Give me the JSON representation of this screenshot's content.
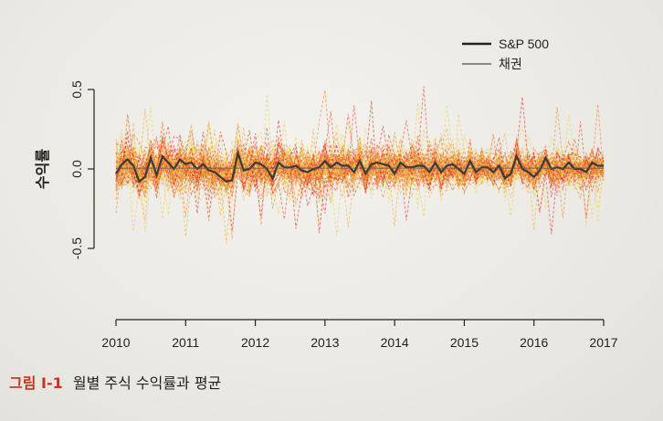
{
  "caption": {
    "figure_label": "그림 I-1",
    "text": "월별 주식 수익률과 평균"
  },
  "colors": {
    "stock_palette": [
      "#d81e1e",
      "#e8401c",
      "#f07a1e",
      "#f5a623",
      "#f2c94c",
      "#e6d64a"
    ],
    "mean_line": "#3a3a3a",
    "axis": "#222222"
  },
  "chart_data": {
    "type": "line",
    "ylabel": "수익률",
    "xlabel": "",
    "xlim": [
      2010,
      2017
    ],
    "ylim": [
      -0.5,
      0.5
    ],
    "x_ticks": [
      2010,
      2011,
      2012,
      2013,
      2014,
      2015,
      2016,
      2017
    ],
    "x_tick_labels": [
      "2010",
      "2011",
      "2012",
      "2013",
      "2014",
      "2015",
      "2016",
      "2017"
    ],
    "y_ticks": [
      -0.5,
      0.0,
      0.5
    ],
    "y_tick_labels": [
      "-0.5",
      "0.0",
      "0.5"
    ],
    "grid": false,
    "legend_position": "top-right",
    "legend": [
      {
        "label": "S&P 500",
        "style": "thick-solid"
      },
      {
        "label": "채권",
        "style": "thin-solid"
      }
    ],
    "series": [
      {
        "name": "S&P 500",
        "description_style": "mean",
        "x": [
          2010.0,
          2010.083,
          2010.167,
          2010.25,
          2010.333,
          2010.417,
          2010.5,
          2010.583,
          2010.667,
          2010.75,
          2010.833,
          2010.917,
          2011.0,
          2011.083,
          2011.167,
          2011.25,
          2011.333,
          2011.417,
          2011.5,
          2011.583,
          2011.667,
          2011.75,
          2011.833,
          2011.917,
          2012.0,
          2012.083,
          2012.167,
          2012.25,
          2012.333,
          2012.417,
          2012.5,
          2012.583,
          2012.667,
          2012.75,
          2012.833,
          2012.917,
          2013.0,
          2013.083,
          2013.167,
          2013.25,
          2013.333,
          2013.417,
          2013.5,
          2013.583,
          2013.667,
          2013.75,
          2013.833,
          2013.917,
          2014.0,
          2014.083,
          2014.167,
          2014.25,
          2014.333,
          2014.417,
          2014.5,
          2014.583,
          2014.667,
          2014.75,
          2014.833,
          2014.917,
          2015.0,
          2015.083,
          2015.167,
          2015.25,
          2015.333,
          2015.417,
          2015.5,
          2015.583,
          2015.667,
          2015.75,
          2015.833,
          2015.917,
          2016.0,
          2016.083,
          2016.167,
          2016.25,
          2016.333,
          2016.417,
          2016.5,
          2016.583,
          2016.667,
          2016.75,
          2016.833,
          2016.917,
          2017.0
        ],
        "y": [
          -0.03,
          0.03,
          0.06,
          0.02,
          -0.08,
          -0.05,
          0.07,
          -0.04,
          0.08,
          0.04,
          0.0,
          0.06,
          0.03,
          0.04,
          0.0,
          0.03,
          -0.01,
          -0.02,
          -0.05,
          -0.08,
          -0.07,
          0.1,
          -0.01,
          0.0,
          0.04,
          0.03,
          0.0,
          -0.06,
          0.04,
          0.01,
          0.01,
          0.02,
          -0.01,
          -0.02,
          0.0,
          0.01,
          0.05,
          0.01,
          0.04,
          0.02,
          0.02,
          -0.02,
          0.05,
          -0.03,
          0.03,
          0.04,
          0.03,
          0.02,
          -0.03,
          0.04,
          0.01,
          0.01,
          0.02,
          0.02,
          -0.02,
          0.04,
          -0.02,
          0.02,
          0.03,
          0.0,
          -0.03,
          0.05,
          -0.02,
          0.01,
          0.01,
          -0.02,
          0.02,
          -0.06,
          -0.03,
          0.08,
          0.0,
          -0.02,
          -0.05,
          -0.01,
          0.07,
          0.0,
          0.01,
          0.0,
          0.04,
          0.0,
          0.0,
          -0.02,
          0.04,
          0.02,
          0.02
        ]
      }
    ]
  }
}
